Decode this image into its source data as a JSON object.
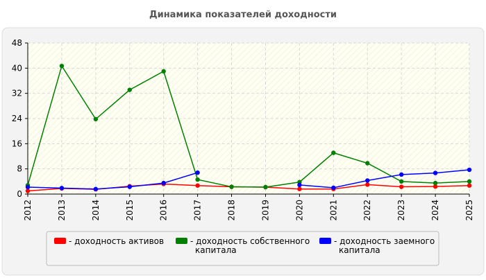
{
  "chart_data": {
    "type": "line",
    "title": "Динамика показателей доходности",
    "xlabel": "",
    "ylabel": "",
    "categories": [
      "2012",
      "2013",
      "2014",
      "2015",
      "2016",
      "2017",
      "2018",
      "2019",
      "2020",
      "2021",
      "2022",
      "2023",
      "2024",
      "2025"
    ],
    "ylim": [
      0,
      48
    ],
    "yticks": [
      0,
      8,
      16,
      24,
      32,
      40,
      48
    ],
    "grid": true,
    "legend_position": "bottom",
    "series": [
      {
        "name": "- доходность активов",
        "color": "#ff0000",
        "values": [
          1.0,
          1.8,
          1.5,
          2.5,
          3.2,
          2.7,
          2.3,
          2.2,
          1.6,
          1.6,
          3.0,
          2.3,
          2.4,
          2.7
        ]
      },
      {
        "name": "- доходность собственного капитала",
        "color": "#008000",
        "values": [
          2.8,
          40.7,
          23.8,
          33.1,
          39.0,
          4.6,
          2.3,
          2.2,
          3.8,
          13.1,
          9.8,
          4.0,
          3.5,
          4.0
        ]
      },
      {
        "name": "- доходность заемного капитала",
        "color": "#0000ff",
        "values": [
          2.2,
          1.9,
          1.6,
          2.3,
          3.5,
          6.8,
          null,
          null,
          2.9,
          2.0,
          4.3,
          6.2,
          6.7,
          7.7
        ]
      }
    ]
  },
  "colors": {
    "plot_background": "#fffff4",
    "panel_background": "#f3f3f3",
    "grid": "#d9d9d9",
    "axis": "#000000"
  }
}
